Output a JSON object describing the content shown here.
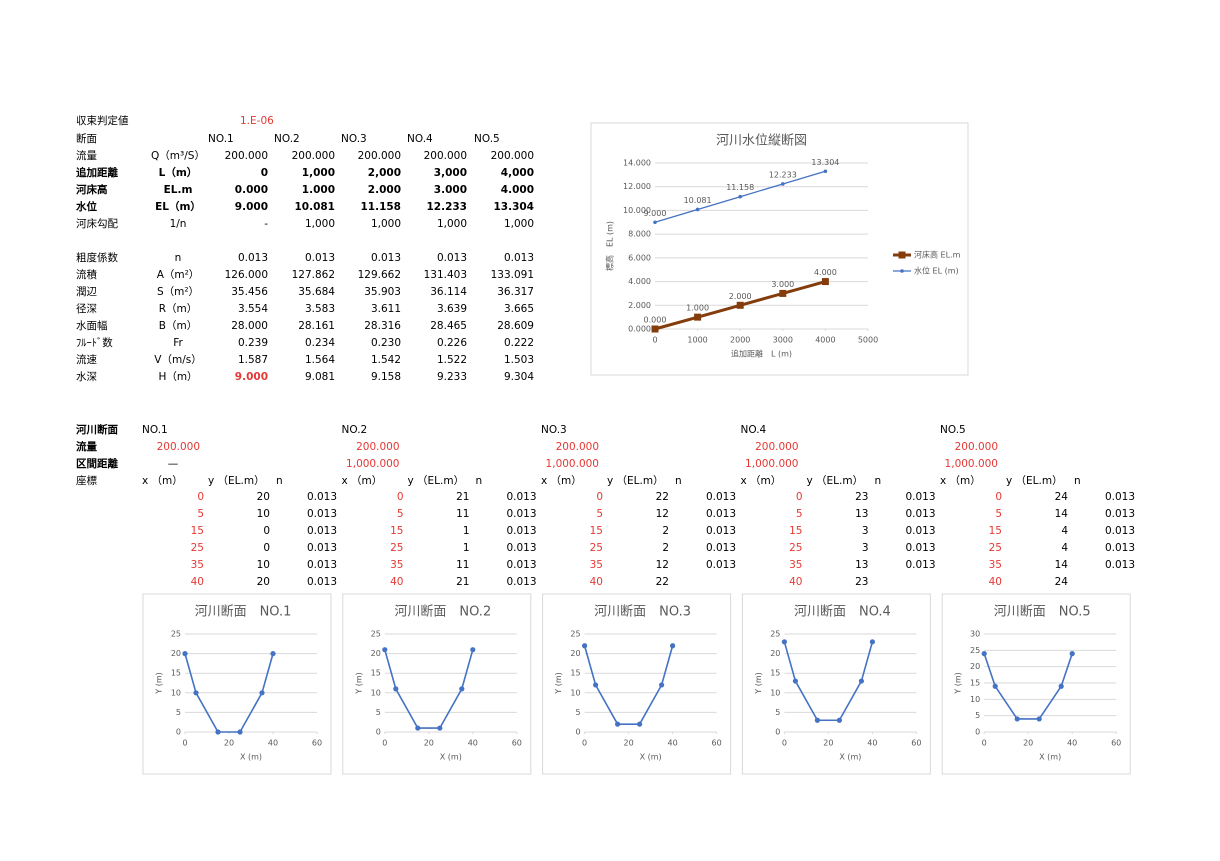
{
  "convergence": {
    "label": "収束判定値",
    "value": "1.E-06"
  },
  "summary": {
    "header": [
      "断面",
      "NO.1",
      "NO.2",
      "NO.3",
      "NO.4",
      "NO.5"
    ],
    "rows": [
      [
        "流量",
        "Q（m³/S）",
        "200.000",
        "200.000",
        "200.000",
        "200.000",
        "200.000"
      ],
      [
        "追加距離",
        "L（m）",
        "0",
        "1,000",
        "2,000",
        "3,000",
        "4,000"
      ],
      [
        "河床高",
        "EL.m",
        "0.000",
        "1.000",
        "2.000",
        "3.000",
        "4.000"
      ],
      [
        "水位",
        "EL（m）",
        "9.000",
        "10.081",
        "11.158",
        "12.233",
        "13.304"
      ],
      [
        "河床勾配",
        "1/n",
        "-",
        "1,000",
        "1,000",
        "1,000",
        "1,000"
      ],
      [
        "粗度係数",
        "n",
        "0.013",
        "0.013",
        "0.013",
        "0.013",
        "0.013"
      ],
      [
        "流積",
        "A（m²）",
        "126.000",
        "127.862",
        "129.662",
        "131.403",
        "133.091"
      ],
      [
        "潤辺",
        "S（m²）",
        "35.456",
        "35.684",
        "35.903",
        "36.114",
        "36.317"
      ],
      [
        "径深",
        "R（m）",
        "3.554",
        "3.583",
        "3.611",
        "3.639",
        "3.665"
      ],
      [
        "水面幅",
        "B（m）",
        "28.000",
        "28.161",
        "28.316",
        "28.465",
        "28.609"
      ],
      [
        "ﾌﾙｰﾄﾞ数",
        "Fr",
        "0.239",
        "0.234",
        "0.230",
        "0.226",
        "0.222"
      ],
      [
        "流速",
        "V（m/s）",
        "1.587",
        "1.564",
        "1.542",
        "1.522",
        "1.503"
      ],
      [
        "水深",
        "H（m）",
        "9.000",
        "9.081",
        "9.158",
        "9.233",
        "9.304"
      ]
    ]
  },
  "sections": {
    "labels": [
      "河川断面",
      "流量",
      "区間距離",
      "座標"
    ],
    "coord_headers": [
      "x （m）",
      "y （EL.m）",
      "n"
    ],
    "items": [
      {
        "name": "NO.1",
        "flow": "200.000",
        "distance": "—",
        "rows": [
          [
            "0",
            "20",
            "0.013"
          ],
          [
            "5",
            "10",
            "0.013"
          ],
          [
            "15",
            "0",
            "0.013"
          ],
          [
            "25",
            "0",
            "0.013"
          ],
          [
            "35",
            "10",
            "0.013"
          ],
          [
            "40",
            "20",
            "0.013"
          ]
        ]
      },
      {
        "name": "NO.2",
        "flow": "200.000",
        "distance": "1,000.000",
        "rows": [
          [
            "0",
            "21",
            "0.013"
          ],
          [
            "5",
            "11",
            "0.013"
          ],
          [
            "15",
            "1",
            "0.013"
          ],
          [
            "25",
            "1",
            "0.013"
          ],
          [
            "35",
            "11",
            "0.013"
          ],
          [
            "40",
            "21",
            "0.013"
          ]
        ]
      },
      {
        "name": "NO.3",
        "flow": "200.000",
        "distance": "1,000.000",
        "rows": [
          [
            "0",
            "22",
            "0.013"
          ],
          [
            "5",
            "12",
            "0.013"
          ],
          [
            "15",
            "2",
            "0.013"
          ],
          [
            "25",
            "2",
            "0.013"
          ],
          [
            "35",
            "12",
            "0.013"
          ],
          [
            "40",
            "22"
          ]
        ]
      },
      {
        "name": "NO.4",
        "flow": "200.000",
        "distance": "1,000.000",
        "rows": [
          [
            "0",
            "23",
            "0.013"
          ],
          [
            "5",
            "13",
            "0.013"
          ],
          [
            "15",
            "3",
            "0.013"
          ],
          [
            "25",
            "3",
            "0.013"
          ],
          [
            "35",
            "13",
            "0.013"
          ],
          [
            "40",
            "23"
          ]
        ]
      },
      {
        "name": "NO.5",
        "flow": "200.000",
        "distance": "1,000.000",
        "rows": [
          [
            "0",
            "24",
            "0.013"
          ],
          [
            "5",
            "14",
            "0.013"
          ],
          [
            "15",
            "4",
            "0.013"
          ],
          [
            "25",
            "4",
            "0.013"
          ],
          [
            "35",
            "14",
            "0.013"
          ],
          [
            "40",
            "24"
          ]
        ]
      }
    ]
  },
  "chart_data": [
    {
      "type": "line",
      "title": "河川水位縦断図",
      "x_label": "追加距離　L (m)",
      "y_label": "標高　EL (m)",
      "x": [
        0,
        1000,
        2000,
        3000,
        4000
      ],
      "series": [
        {
          "name": "河床高 EL.m",
          "color": "#843c0c",
          "values": [
            0,
            1,
            2,
            3,
            4
          ],
          "value_labels": [
            "0.000",
            "1.000",
            "2.000",
            "3.000",
            "4.000"
          ]
        },
        {
          "name": "水位 EL (m)",
          "color": "#4472c4",
          "values": [
            9,
            10.081,
            11.158,
            12.233,
            13.304
          ],
          "value_labels": [
            "9.000",
            "10.081",
            "11.158",
            "12.233",
            "13.304"
          ]
        }
      ],
      "xlim": [
        0,
        5000
      ],
      "xticks": [
        0,
        1000,
        2000,
        3000,
        4000,
        5000
      ],
      "ylim": [
        0,
        14
      ],
      "yticks": [
        {
          "value": 0,
          "label": "0.000"
        },
        {
          "value": 2,
          "label": "2.000"
        },
        {
          "value": 4,
          "label": "4.000"
        },
        {
          "value": 6,
          "label": "6.000"
        },
        {
          "value": 8,
          "label": "8.000"
        },
        {
          "value": 10,
          "label": "10.000"
        },
        {
          "value": 12,
          "label": "12.000"
        },
        {
          "value": 14,
          "label": "14.000"
        }
      ],
      "grid": true,
      "legend": "right"
    },
    {
      "type": "line",
      "title": "河川断面　NO.1",
      "x_label": "X (m)",
      "y_label": "Y (m)",
      "x": [
        0,
        5,
        15,
        25,
        35,
        40
      ],
      "series": [
        {
          "color": "#4472c4",
          "values": [
            20,
            10,
            0,
            0,
            10,
            20
          ]
        }
      ],
      "xlim": [
        0,
        60
      ],
      "xticks": [
        0,
        20,
        40,
        60
      ],
      "ylim": [
        0,
        25
      ],
      "yticks": [
        0,
        5,
        10,
        15,
        20,
        25
      ],
      "grid": true
    },
    {
      "type": "line",
      "title": "河川断面　NO.2",
      "x_label": "X (m)",
      "y_label": "Y (m)",
      "x": [
        0,
        5,
        15,
        25,
        35,
        40
      ],
      "series": [
        {
          "color": "#4472c4",
          "values": [
            21,
            11,
            1,
            1,
            11,
            21
          ]
        }
      ],
      "xlim": [
        0,
        60
      ],
      "xticks": [
        0,
        20,
        40,
        60
      ],
      "ylim": [
        0,
        25
      ],
      "yticks": [
        0,
        5,
        10,
        15,
        20,
        25
      ],
      "grid": true
    },
    {
      "type": "line",
      "title": "河川断面　NO.3",
      "x_label": "X (m)",
      "y_label": "Y (m)",
      "x": [
        0,
        5,
        15,
        25,
        35,
        40
      ],
      "series": [
        {
          "color": "#4472c4",
          "values": [
            22,
            12,
            2,
            2,
            12,
            22
          ]
        }
      ],
      "xlim": [
        0,
        60
      ],
      "xticks": [
        0,
        20,
        40,
        60
      ],
      "ylim": [
        0,
        25
      ],
      "yticks": [
        0,
        5,
        10,
        15,
        20,
        25
      ],
      "grid": true
    },
    {
      "type": "line",
      "title": "河川断面　NO.4",
      "x_label": "X (m)",
      "y_label": "Y (m)",
      "x": [
        0,
        5,
        15,
        25,
        35,
        40
      ],
      "series": [
        {
          "color": "#4472c4",
          "values": [
            23,
            13,
            3,
            3,
            13,
            23
          ]
        }
      ],
      "xlim": [
        0,
        60
      ],
      "xticks": [
        0,
        20,
        40,
        60
      ],
      "ylim": [
        0,
        25
      ],
      "yticks": [
        0,
        5,
        10,
        15,
        20,
        25
      ],
      "grid": true
    },
    {
      "type": "line",
      "title": "河川断面　NO.5",
      "x_label": "X (m)",
      "y_label": "Y (m)",
      "x": [
        0,
        5,
        15,
        25,
        35,
        40
      ],
      "series": [
        {
          "color": "#4472c4",
          "values": [
            24,
            14,
            4,
            4,
            14,
            24
          ]
        }
      ],
      "xlim": [
        0,
        60
      ],
      "xticks": [
        0,
        20,
        40,
        60
      ],
      "ylim": [
        0,
        30
      ],
      "yticks": [
        0,
        5,
        10,
        15,
        20,
        25,
        30
      ],
      "grid": true
    }
  ]
}
